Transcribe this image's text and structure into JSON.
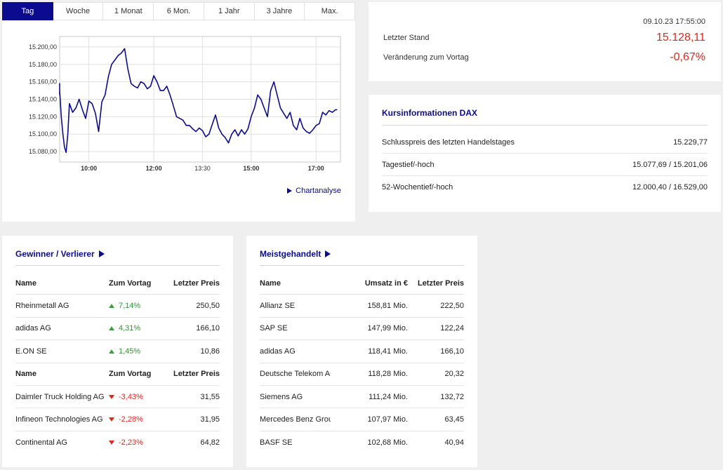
{
  "tabs": [
    {
      "label": "Tag",
      "active": true
    },
    {
      "label": "Woche"
    },
    {
      "label": "1 Monat"
    },
    {
      "label": "6 Mon."
    },
    {
      "label": "1 Jahr"
    },
    {
      "label": "3 Jahre"
    },
    {
      "label": "Max."
    }
  ],
  "chart_link": "Chartanalyse",
  "chart_data": {
    "type": "line",
    "title": "",
    "xlabel": "",
    "ylabel": "",
    "x_tick_labels": [
      "10:00",
      "12:00",
      "13:30",
      "15:00",
      "17:00"
    ],
    "x_ticks_hours": [
      10.0,
      12.0,
      13.5,
      15.0,
      17.0
    ],
    "y_tick_labels": [
      "15.200,00",
      "15.180,00",
      "15.160,00",
      "15.140,00",
      "15.120,00",
      "15.100,00",
      "15.080,00"
    ],
    "y_ticks": [
      15200,
      15180,
      15160,
      15140,
      15120,
      15100,
      15080
    ],
    "xlim_hours": [
      9.1,
      17.75
    ],
    "ylim": [
      15068,
      15212
    ],
    "grid": true,
    "line_color": "#0b0b8f",
    "series": [
      {
        "x": [
          9.0,
          9.05,
          9.1,
          9.15,
          9.2,
          9.25,
          9.3,
          9.35,
          9.4,
          9.5,
          9.6,
          9.7,
          9.8,
          9.9,
          10.0,
          10.1,
          10.2,
          10.3,
          10.4,
          10.5,
          10.6,
          10.7,
          10.8,
          10.9,
          11.0,
          11.1,
          11.2,
          11.3,
          11.4,
          11.5,
          11.6,
          11.7,
          11.8,
          11.9,
          12.0,
          12.1,
          12.2,
          12.3,
          12.4,
          12.5,
          12.6,
          12.7,
          12.8,
          12.9,
          13.0,
          13.1,
          13.2,
          13.3,
          13.4,
          13.5,
          13.6,
          13.7,
          13.8,
          13.9,
          14.0,
          14.1,
          14.2,
          14.3,
          14.4,
          14.5,
          14.6,
          14.7,
          14.8,
          14.9,
          15.0,
          15.1,
          15.2,
          15.3,
          15.4,
          15.5,
          15.6,
          15.7,
          15.8,
          15.9,
          16.0,
          16.1,
          16.2,
          16.3,
          16.4,
          16.5,
          16.6,
          16.7,
          16.8,
          16.9,
          17.0,
          17.1,
          17.2,
          17.3,
          17.4,
          17.5,
          17.6,
          17.65
        ],
        "values": [
          15145,
          15158,
          15150,
          15120,
          15100,
          15085,
          15079,
          15100,
          15135,
          15125,
          15130,
          15140,
          15128,
          15118,
          15138,
          15135,
          15124,
          15103,
          15137,
          15145,
          15166,
          15180,
          15185,
          15190,
          15193,
          15198,
          15175,
          15158,
          15155,
          15153,
          15160,
          15158,
          15152,
          15155,
          15167,
          15160,
          15150,
          15150,
          15155,
          15145,
          15133,
          15120,
          15118,
          15116,
          15110,
          15110,
          15106,
          15103,
          15107,
          15104,
          15097,
          15100,
          15111,
          15122,
          15107,
          15100,
          15096,
          15090,
          15100,
          15105,
          15098,
          15105,
          15100,
          15106,
          15120,
          15130,
          15145,
          15140,
          15130,
          15120,
          15150,
          15160,
          15145,
          15130,
          15124,
          15118,
          15125,
          15110,
          15105,
          15118,
          15107,
          15103,
          15101,
          15105,
          15110,
          15112,
          15125,
          15122,
          15127,
          15125,
          15128,
          15128
        ]
      }
    ]
  },
  "stand": {
    "date": "09.10.23 17:55:00",
    "last_label": "Letzter Stand",
    "last_value": "15.128,11",
    "change_label": "Veränderung zum Vortag",
    "change_value": "-0,67%",
    "accent_negative": "#e3261c"
  },
  "kurs": {
    "title": "Kursinformationen DAX",
    "rows": [
      {
        "label": "Schlusspreis des letzten Handelstages",
        "value": "15.229,77"
      },
      {
        "label": "Tagestief/-hoch",
        "value": "15.077,69 / 15.201,06"
      },
      {
        "label": "52-Wochentief/-hoch",
        "value": "12.000,40 / 16.529,00"
      }
    ]
  },
  "gv": {
    "title": "Gewinner / Verlierer",
    "head": {
      "name": "Name",
      "change": "Zum Vortag",
      "price": "Letzter Preis"
    },
    "winners": [
      {
        "name": "Rheinmetall AG",
        "change": "7,14%",
        "price": "250,50"
      },
      {
        "name": "adidas AG",
        "change": "4,31%",
        "price": "166,10"
      },
      {
        "name": "E.ON SE",
        "change": "1,45%",
        "price": "10,86"
      }
    ],
    "losers": [
      {
        "name": "Daimler Truck Holding AG",
        "change": "-3,43%",
        "price": "31,55"
      },
      {
        "name": "Infineon Technologies AG",
        "change": "-2,28%",
        "price": "31,95"
      },
      {
        "name": "Continental AG",
        "change": "-2,23%",
        "price": "64,82"
      }
    ]
  },
  "mg": {
    "title": "Meistgehandelt",
    "head": {
      "name": "Name",
      "volume": "Umsatz in €",
      "price": "Letzter Preis"
    },
    "rows": [
      {
        "name": "Allianz SE",
        "volume": "158,81 Mio.",
        "price": "222,50"
      },
      {
        "name": "SAP SE",
        "volume": "147,99 Mio.",
        "price": "122,24"
      },
      {
        "name": "adidas AG",
        "volume": "118,41 Mio.",
        "price": "166,10"
      },
      {
        "name": "Deutsche Telekom AG",
        "volume": "118,28 Mio.",
        "price": "20,32"
      },
      {
        "name": "Siemens AG",
        "volume": "111,24 Mio.",
        "price": "132,72"
      },
      {
        "name": "Mercedes Benz Group AG ...",
        "volume": "107,97 Mio.",
        "price": "63,45"
      },
      {
        "name": "BASF SE",
        "volume": "102,68 Mio.",
        "price": "40,94"
      }
    ]
  }
}
